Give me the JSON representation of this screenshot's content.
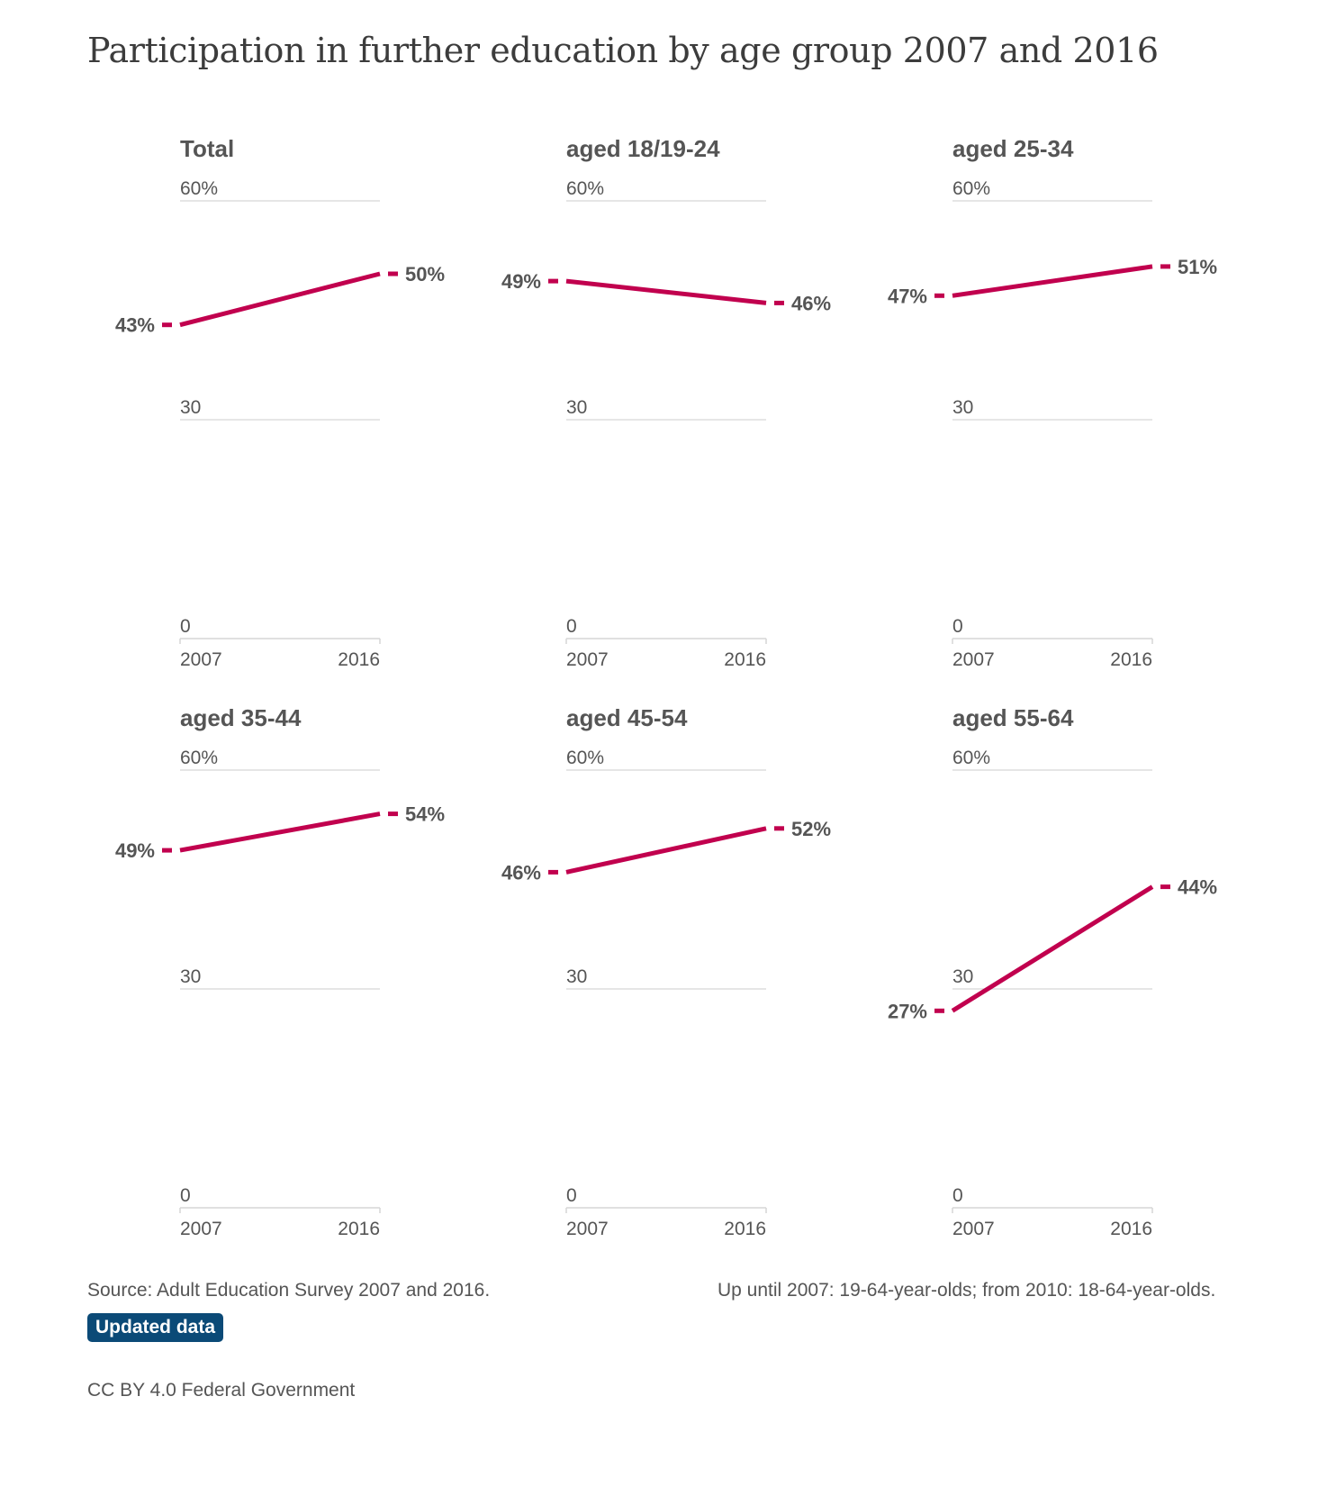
{
  "title": "Participation in further education by age group 2007 and 2016",
  "chart_data": [
    {
      "type": "line",
      "title": "Total",
      "categories": [
        "2007",
        "2016"
      ],
      "values": [
        43,
        50
      ],
      "value_labels": [
        "43%",
        "50%"
      ],
      "ylim": [
        0,
        60
      ],
      "y_ticks": [
        "0",
        "30",
        "60%"
      ],
      "color": "#c1004e"
    },
    {
      "type": "line",
      "title": "aged 18/19-24",
      "categories": [
        "2007",
        "2016"
      ],
      "values": [
        49,
        46
      ],
      "value_labels": [
        "49%",
        "46%"
      ],
      "ylim": [
        0,
        60
      ],
      "y_ticks": [
        "0",
        "30",
        "60%"
      ],
      "color": "#c1004e"
    },
    {
      "type": "line",
      "title": "aged 25-34",
      "categories": [
        "2007",
        "2016"
      ],
      "values": [
        47,
        51
      ],
      "value_labels": [
        "47%",
        "51%"
      ],
      "ylim": [
        0,
        60
      ],
      "y_ticks": [
        "0",
        "30",
        "60%"
      ],
      "color": "#c1004e"
    },
    {
      "type": "line",
      "title": "aged 35-44",
      "categories": [
        "2007",
        "2016"
      ],
      "values": [
        49,
        54
      ],
      "value_labels": [
        "49%",
        "54%"
      ],
      "ylim": [
        0,
        60
      ],
      "y_ticks": [
        "0",
        "30",
        "60%"
      ],
      "color": "#c1004e"
    },
    {
      "type": "line",
      "title": "aged 45-54",
      "categories": [
        "2007",
        "2016"
      ],
      "values": [
        46,
        52
      ],
      "value_labels": [
        "46%",
        "52%"
      ],
      "ylim": [
        0,
        60
      ],
      "y_ticks": [
        "0",
        "30",
        "60%"
      ],
      "color": "#c1004e"
    },
    {
      "type": "line",
      "title": "aged 55-64",
      "categories": [
        "2007",
        "2016"
      ],
      "values": [
        27,
        44
      ],
      "value_labels": [
        "27%",
        "44%"
      ],
      "ylim": [
        0,
        60
      ],
      "y_ticks": [
        "0",
        "30",
        "60%"
      ],
      "color": "#c1004e"
    }
  ],
  "footer": {
    "source": "Source: Adult Education Survey 2007 and 2016.",
    "note": "Up until 2007: 19-64-year-olds; from 2010: 18-64-year-olds.",
    "badge": "Updated data",
    "license": "CC BY 4.0 Federal Government"
  },
  "colors": {
    "line": "#c1004e",
    "badge": "#0b4a77",
    "grid": "#d6d6d6",
    "text": "#555555"
  }
}
